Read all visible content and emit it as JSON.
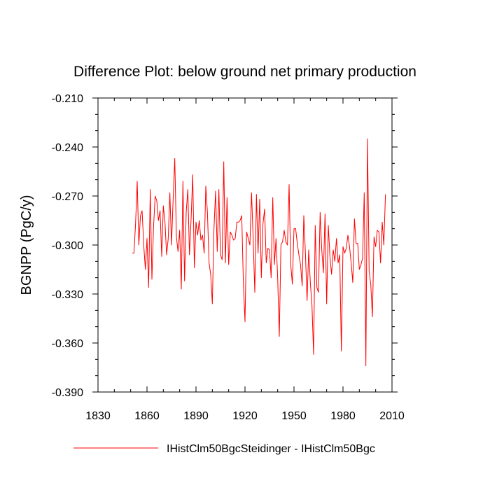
{
  "chart_data": {
    "type": "line",
    "title": "Difference Plot: below ground net primary production",
    "ylabel": "BGNPP  (PgC/y)",
    "xlabel": "",
    "xlim": [
      1830,
      2010
    ],
    "ylim": [
      -0.39,
      -0.21
    ],
    "xticks": [
      1830,
      1860,
      1890,
      1920,
      1950,
      1980,
      2010
    ],
    "xtick_labels": [
      "1830",
      "1860",
      "1890",
      "1920",
      "1950",
      "1980",
      "2010"
    ],
    "yticks": [
      -0.21,
      -0.24,
      -0.27,
      -0.3,
      -0.33,
      -0.36,
      -0.39
    ],
    "ytick_labels": [
      "-0.210",
      "-0.240",
      "-0.270",
      "-0.300",
      "-0.330",
      "-0.360",
      "-0.390"
    ],
    "grid": false,
    "legend_position": "bottom",
    "series": [
      {
        "name": "IHistClm50BgcSteidinger - IHistClm50Bgc",
        "color": "#ff0000",
        "x_start": 1851,
        "x_step": 1,
        "values": [
          -0.305,
          -0.305,
          -0.287,
          -0.261,
          -0.3,
          -0.282,
          -0.279,
          -0.3,
          -0.315,
          -0.296,
          -0.326,
          -0.266,
          -0.321,
          -0.289,
          -0.27,
          -0.273,
          -0.285,
          -0.279,
          -0.307,
          -0.276,
          -0.286,
          -0.306,
          -0.296,
          -0.268,
          -0.3,
          -0.272,
          -0.247,
          -0.295,
          -0.304,
          -0.291,
          -0.327,
          -0.261,
          -0.322,
          -0.28,
          -0.266,
          -0.306,
          -0.284,
          -0.257,
          -0.314,
          -0.286,
          -0.294,
          -0.285,
          -0.297,
          -0.294,
          -0.305,
          -0.264,
          -0.28,
          -0.311,
          -0.318,
          -0.336,
          -0.29,
          -0.267,
          -0.304,
          -0.266,
          -0.306,
          -0.309,
          -0.249,
          -0.311,
          -0.271,
          -0.312,
          -0.292,
          -0.294,
          -0.297,
          -0.296,
          -0.286,
          -0.286,
          -0.285,
          -0.282,
          -0.323,
          -0.347,
          -0.292,
          -0.296,
          -0.3,
          -0.268,
          -0.296,
          -0.329,
          -0.269,
          -0.305,
          -0.272,
          -0.32,
          -0.287,
          -0.278,
          -0.311,
          -0.302,
          -0.303,
          -0.32,
          -0.271,
          -0.312,
          -0.296,
          -0.32,
          -0.356,
          -0.3,
          -0.298,
          -0.291,
          -0.298,
          -0.3,
          -0.263,
          -0.312,
          -0.324,
          -0.29,
          -0.29,
          -0.299,
          -0.306,
          -0.312,
          -0.325,
          -0.282,
          -0.305,
          -0.334,
          -0.303,
          -0.323,
          -0.337,
          -0.367,
          -0.288,
          -0.326,
          -0.329,
          -0.28,
          -0.303,
          -0.317,
          -0.281,
          -0.336,
          -0.288,
          -0.307,
          -0.318,
          -0.303,
          -0.31,
          -0.296,
          -0.311,
          -0.306,
          -0.365,
          -0.301,
          -0.305,
          -0.302,
          -0.294,
          -0.301,
          -0.311,
          -0.323,
          -0.284,
          -0.299,
          -0.299,
          -0.315,
          -0.312,
          -0.308,
          -0.268,
          -0.374,
          -0.235,
          -0.316,
          -0.324,
          -0.344,
          -0.295,
          -0.301,
          -0.291,
          -0.292,
          -0.311,
          -0.286,
          -0.3,
          -0.269
        ]
      }
    ]
  }
}
